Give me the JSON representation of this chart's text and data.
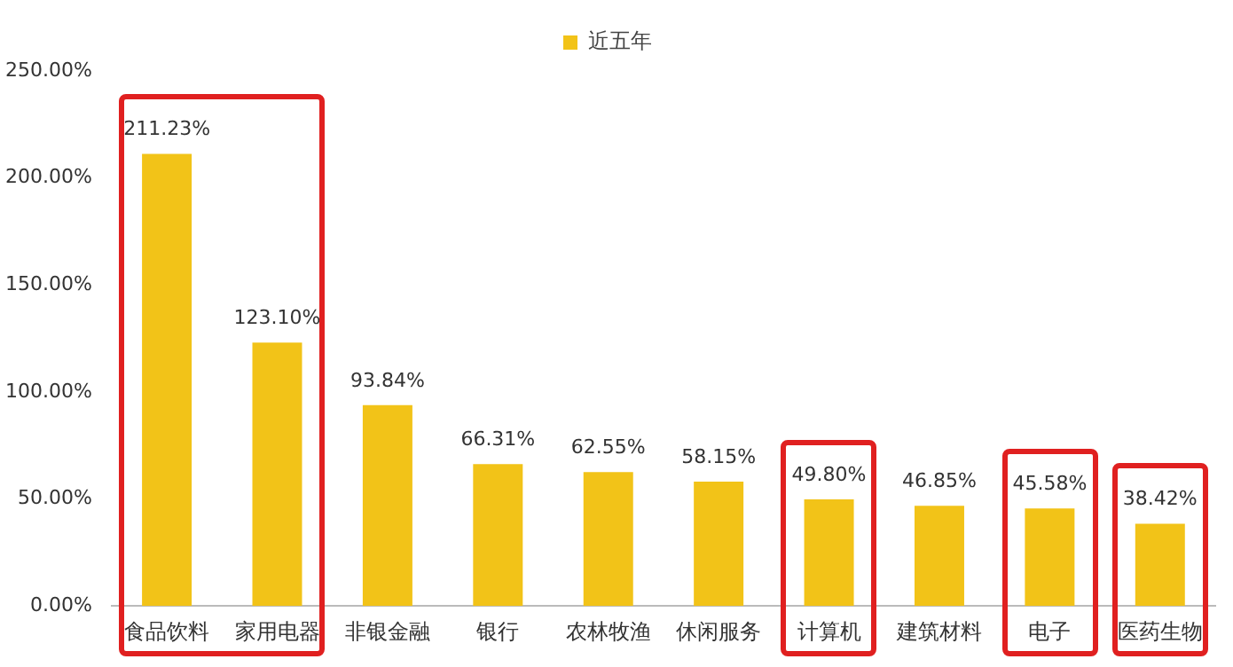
{
  "chart_data": {
    "type": "bar",
    "categories": [
      "食品饮料",
      "家用电器",
      "非银金融",
      "银行",
      "农林牧渔",
      "休闲服务",
      "计算机",
      "建筑材料",
      "电子",
      "医药生物"
    ],
    "series": [
      {
        "name": "近五年",
        "color": "#f2c318",
        "values": [
          211.23,
          123.1,
          93.84,
          66.31,
          62.55,
          58.15,
          49.8,
          46.85,
          45.58,
          38.42
        ],
        "value_labels": [
          "211.23%",
          "123.10%",
          "93.84%",
          "66.31%",
          "62.55%",
          "58.15%",
          "49.80%",
          "46.85%",
          "45.58%",
          "38.42%"
        ]
      }
    ],
    "ylim": [
      0,
      250
    ],
    "yticks": [
      {
        "value": 0,
        "label": "0.00%"
      },
      {
        "value": 50,
        "label": "50.00%"
      },
      {
        "value": 100,
        "label": "100.00%"
      },
      {
        "value": 150,
        "label": "150.00%"
      },
      {
        "value": 200,
        "label": "200.00%"
      },
      {
        "value": 250,
        "label": "250.00%"
      }
    ],
    "grid": false,
    "legend": "top"
  }
}
